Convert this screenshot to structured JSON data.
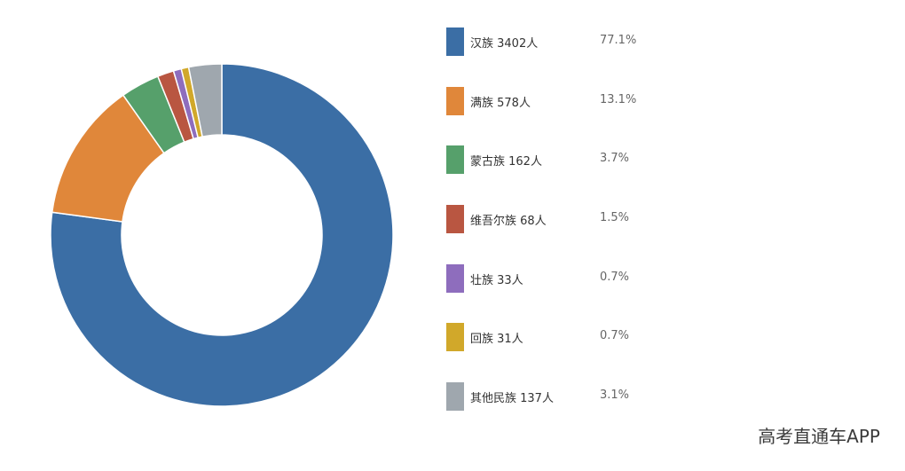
{
  "chart_data": {
    "type": "pie",
    "donut": true,
    "slices": [
      {
        "label": "汉族",
        "value": 3402,
        "display": "汉族  3402人",
        "percent": "77.1%",
        "color": "#3b6ea5"
      },
      {
        "label": "满族",
        "value": 578,
        "display": "满族  578人",
        "percent": "13.1%",
        "color": "#e0873a"
      },
      {
        "label": "蒙古族",
        "value": 162,
        "display": "蒙古族  162人",
        "percent": "3.7%",
        "color": "#56a06b"
      },
      {
        "label": "维吾尔族",
        "value": 68,
        "display": "维吾尔族  68人",
        "percent": "1.5%",
        "color": "#b95641"
      },
      {
        "label": "壮族",
        "value": 33,
        "display": "壮族  33人",
        "percent": "0.7%",
        "color": "#8e6dbd"
      },
      {
        "label": "回族",
        "value": 31,
        "display": "回族  31人",
        "percent": "0.7%",
        "color": "#d1a82a"
      },
      {
        "label": "其他民族",
        "value": 137,
        "display": "其他民族  137人",
        "percent": "3.1%",
        "color": "#9fa7ae"
      }
    ],
    "legend_position": "right"
  },
  "watermark": "高考直通车APP"
}
